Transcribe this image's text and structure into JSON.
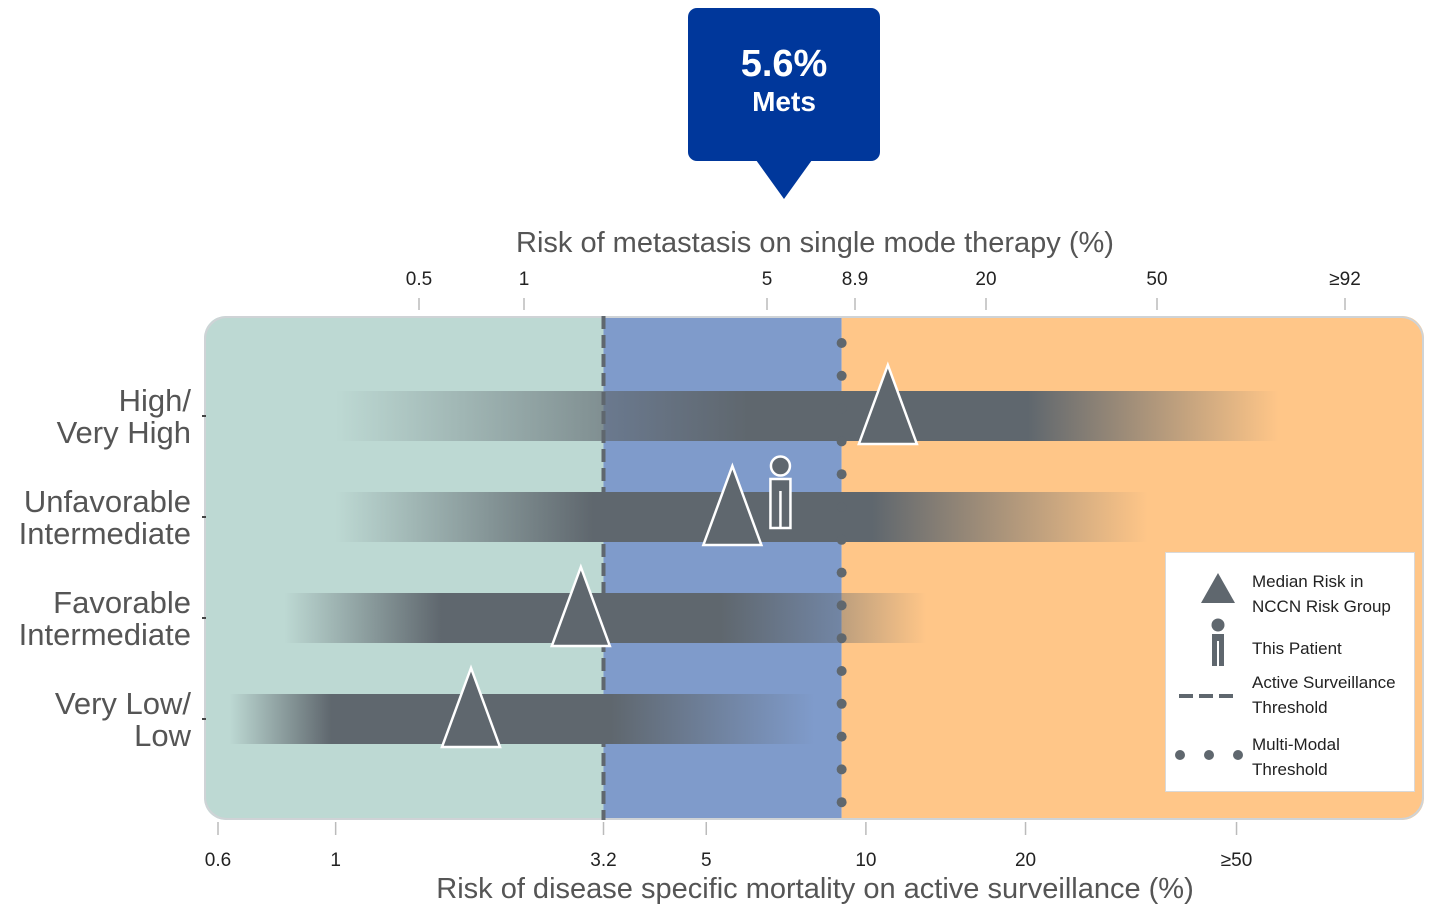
{
  "callout": {
    "value": "5.6%",
    "label": "Mets"
  },
  "chart_data": {
    "type": "heatmap",
    "title": "",
    "top_axis": {
      "label": "Risk of metastasis on single mode therapy (%)",
      "ticks": [
        "0.5",
        "1",
        "5",
        "8.9",
        "20",
        "50",
        "≥92"
      ]
    },
    "bottom_axis": {
      "label": "Risk of disease specific mortality on active surveillance (%)",
      "scale": "log",
      "range": [
        0.6,
        70
      ],
      "ticks": [
        {
          "value": 0.6,
          "label": "0.6"
        },
        {
          "value": 1,
          "label": "1"
        },
        {
          "value": 3.2,
          "label": "3.2"
        },
        {
          "value": 5,
          "label": "5"
        },
        {
          "value": 10,
          "label": "10"
        },
        {
          "value": 20,
          "label": "20"
        },
        {
          "value": 50,
          "label": "≥50"
        }
      ]
    },
    "zones": [
      {
        "name": "active-surveillance",
        "from": 0.6,
        "to": 3.2,
        "color": "#bdd9d3"
      },
      {
        "name": "single-mode",
        "from": 3.2,
        "to": 9,
        "color": "#7f9bcb"
      },
      {
        "name": "multi-modal",
        "from": 9,
        "to": 70,
        "color": "#ffc688"
      }
    ],
    "thresholds": {
      "active_surveillance": 3.2,
      "multi_modal": 9
    },
    "groups": [
      {
        "label_lines": [
          "High/",
          "Very High"
        ],
        "median": 11,
        "band": [
          1.0,
          60
        ]
      },
      {
        "label_lines": [
          "Unfavorable",
          "Intermediate"
        ],
        "median": 5.6,
        "band": [
          1.0,
          34
        ]
      },
      {
        "label_lines": [
          "Favorable",
          "Intermediate"
        ],
        "median": 2.9,
        "band": [
          0.8,
          13
        ]
      },
      {
        "label_lines": [
          "Very Low/",
          "Low"
        ],
        "median": 1.8,
        "band": [
          0.63,
          8
        ]
      }
    ],
    "patient": {
      "value": 6.9,
      "group_index": 1
    },
    "legend": {
      "placement": "lower-right",
      "items": [
        {
          "icon": "triangle",
          "text_lines": [
            "Median Risk in",
            "NCCN Risk Group"
          ]
        },
        {
          "icon": "patient",
          "text_lines": [
            "This Patient"
          ]
        },
        {
          "icon": "dashed-line",
          "text_lines": [
            "Active Surveillance",
            "Threshold"
          ]
        },
        {
          "icon": "dotted-line",
          "text_lines": [
            "Multi-Modal",
            "Threshold"
          ]
        }
      ]
    },
    "colors": {
      "band": "#5f676e",
      "marker_fill": "#5f676e",
      "marker_stroke": "#ffffff",
      "threshold": "#5f676e",
      "frame": "#cfd3d6"
    }
  }
}
